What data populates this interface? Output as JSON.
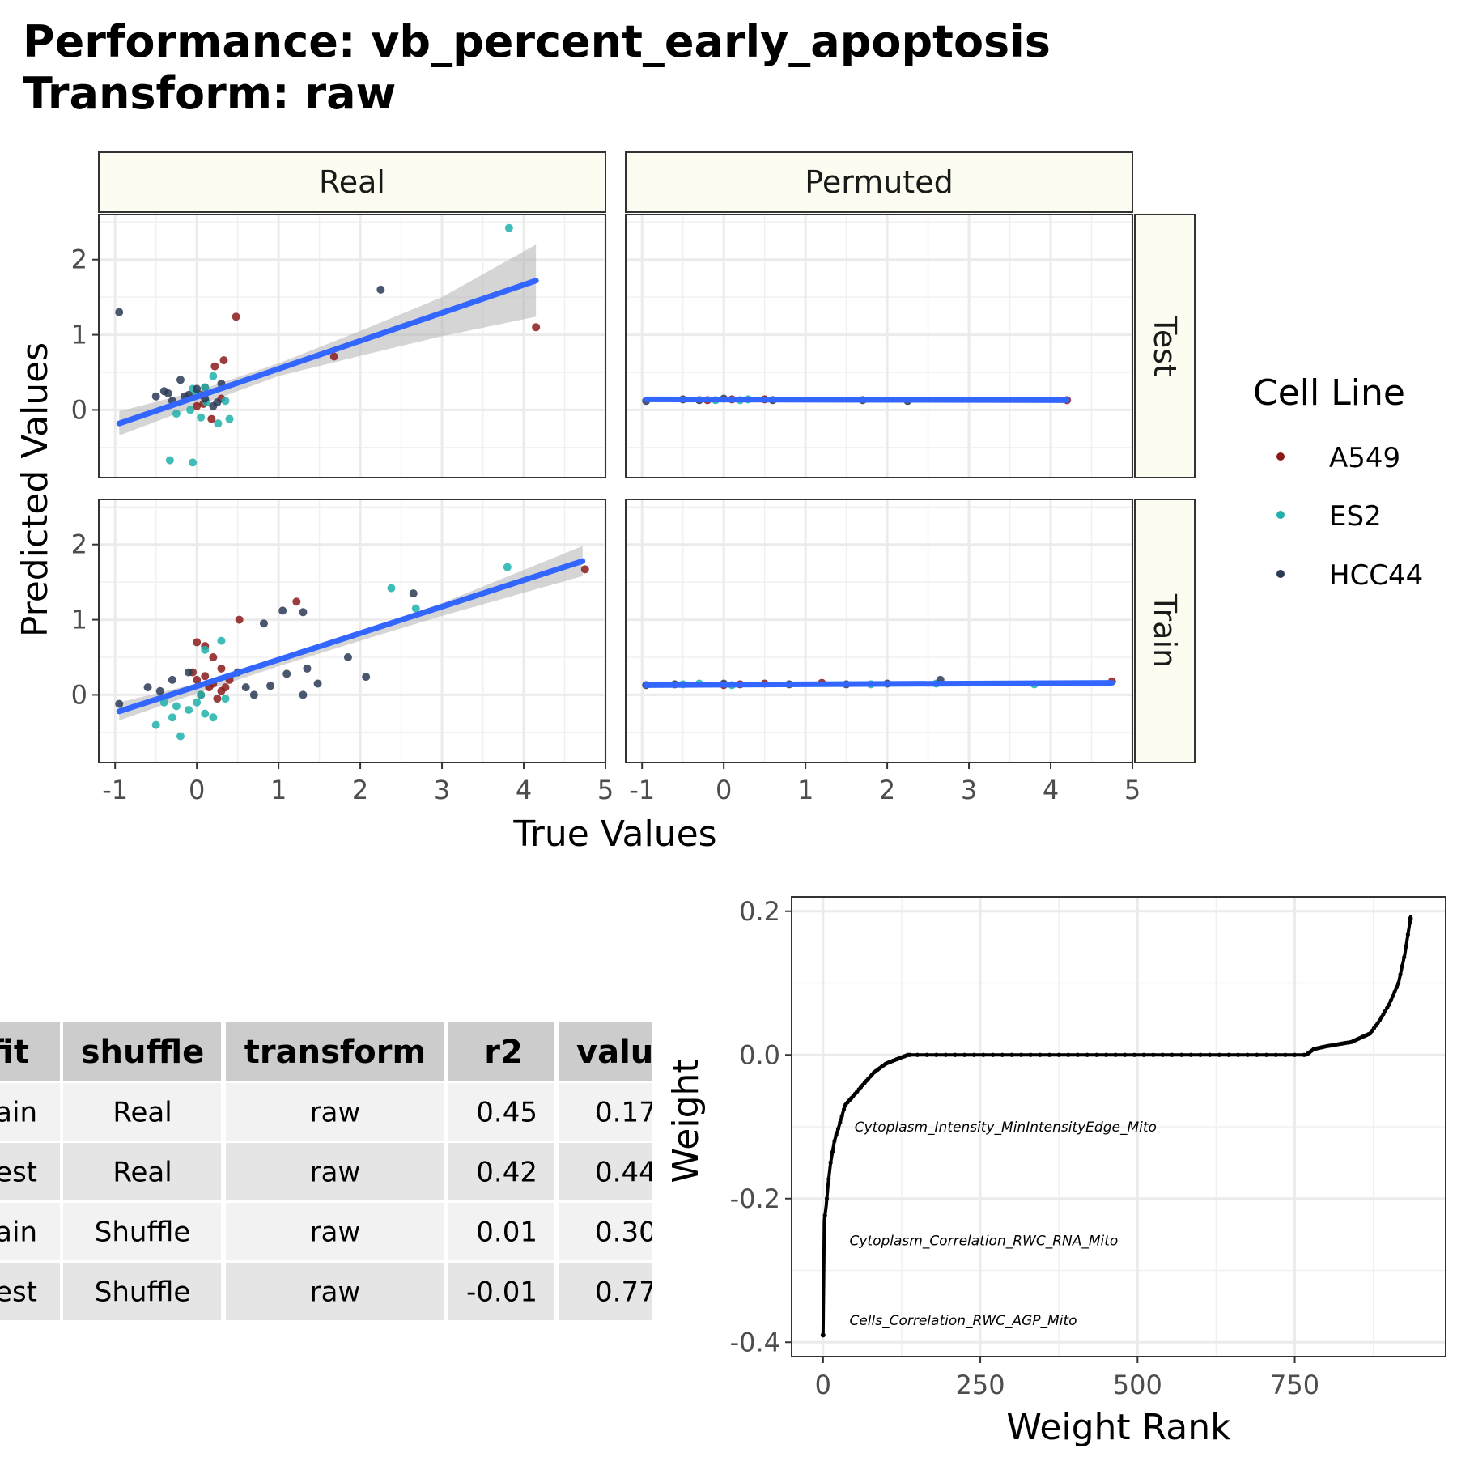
{
  "title": {
    "line1": "Performance: vb_percent_early_apoptosis",
    "line2": "Transform: raw"
  },
  "colors": {
    "A549": "#8b1a1a",
    "ES2": "#20b2aa",
    "HCC44": "#2c3a55",
    "fit_line": "#3366ff",
    "ribbon": "#b3b3b3",
    "strip_fill": "#fcfdf0"
  },
  "chart_data": [
    {
      "type": "scatter",
      "facet_columns": [
        "Real",
        "Permuted"
      ],
      "facet_rows": [
        "Test",
        "Train"
      ],
      "xlabel": "True Values",
      "ylabel": "Predicted Values",
      "xlim": [
        -1.2,
        5
      ],
      "ylim": [
        -0.9,
        2.6
      ],
      "xticks": [
        "-1",
        "0",
        "1",
        "2",
        "3",
        "4",
        "5"
      ],
      "yticks": [
        "0",
        "1",
        "2"
      ],
      "legend": {
        "title": "Cell Line",
        "entries": [
          "A549",
          "ES2",
          "HCC44"
        ],
        "placement": "right"
      },
      "panels": {
        "Real|Test": {
          "fit": {
            "x": [
              -0.95,
              4.15
            ],
            "y": [
              -0.18,
              1.72
            ]
          },
          "ribbon": {
            "x": [
              -0.95,
              0,
              1,
              2,
              3,
              4.15
            ],
            "upper": [
              -0.02,
              0.25,
              0.62,
              1.05,
              1.5,
              2.2
            ],
            "lower": [
              -0.34,
              0.05,
              0.45,
              0.72,
              0.98,
              1.24
            ]
          },
          "series": [
            {
              "name": "A549",
              "points": [
                [
                  0.48,
                  1.24
                ],
                [
                  0.33,
                  0.66
                ],
                [
                  0.22,
                  0.58
                ],
                [
                  1.68,
                  0.71
                ],
                [
                  4.15,
                  1.1
                ],
                [
                  0.1,
                  0.3
                ],
                [
                  0.0,
                  0.05
                ],
                [
                  0.08,
                  0.08
                ],
                [
                  0.3,
                  0.15
                ],
                [
                  0.18,
                  -0.12
                ],
                [
                  0.05,
                  0.2
                ]
              ]
            },
            {
              "name": "ES2",
              "points": [
                [
                  3.82,
                  2.42
                ],
                [
                  -0.33,
                  -0.67
                ],
                [
                  -0.05,
                  -0.7
                ],
                [
                  0.2,
                  0.45
                ],
                [
                  0.1,
                  0.3
                ],
                [
                  -0.05,
                  0.28
                ],
                [
                  0.0,
                  0.22
                ],
                [
                  0.35,
                  0.12
                ],
                [
                  0.4,
                  -0.12
                ],
                [
                  0.26,
                  -0.18
                ],
                [
                  -0.25,
                  -0.05
                ],
                [
                  0.05,
                  -0.1
                ],
                [
                  -0.08,
                  0.0
                ],
                [
                  0.12,
                  0.1
                ]
              ]
            },
            {
              "name": "HCC44",
              "points": [
                [
                  -0.95,
                  1.3
                ],
                [
                  2.25,
                  1.6
                ],
                [
                  -0.5,
                  0.18
                ],
                [
                  -0.35,
                  0.22
                ],
                [
                  -0.3,
                  0.12
                ],
                [
                  -0.2,
                  0.4
                ],
                [
                  -0.1,
                  0.2
                ],
                [
                  0.0,
                  0.28
                ],
                [
                  0.1,
                  0.15
                ],
                [
                  0.2,
                  0.05
                ],
                [
                  0.3,
                  0.35
                ],
                [
                  -0.4,
                  0.25
                ],
                [
                  0.25,
                  0.1
                ],
                [
                  -0.15,
                  0.18
                ]
              ]
            }
          ]
        },
        "Permuted|Test": {
          "fit": {
            "x": [
              -0.95,
              4.2
            ],
            "y": [
              0.14,
              0.13
            ]
          },
          "series": [
            {
              "name": "A549",
              "points": [
                [
                  4.2,
                  0.13
                ],
                [
                  0.1,
                  0.14
                ],
                [
                  -0.2,
                  0.13
                ],
                [
                  0.5,
                  0.14
                ]
              ]
            },
            {
              "name": "ES2",
              "points": [
                [
                  -0.1,
                  0.13
                ],
                [
                  0.2,
                  0.13
                ],
                [
                  0.3,
                  0.14
                ]
              ]
            },
            {
              "name": "HCC44",
              "points": [
                [
                  -0.95,
                  0.12
                ],
                [
                  2.25,
                  0.12
                ],
                [
                  -0.5,
                  0.14
                ],
                [
                  -0.3,
                  0.13
                ],
                [
                  0.0,
                  0.15
                ],
                [
                  0.6,
                  0.13
                ],
                [
                  1.7,
                  0.13
                ]
              ]
            }
          ]
        },
        "Real|Train": {
          "fit": {
            "x": [
              -0.95,
              4.72
            ],
            "y": [
              -0.22,
              1.78
            ]
          },
          "ribbon": {
            "x": [
              -0.95,
              0,
              1,
              2,
              3,
              4.72
            ],
            "upper": [
              -0.1,
              0.15,
              0.5,
              0.85,
              1.22,
              1.98
            ],
            "lower": [
              -0.34,
              0.02,
              0.38,
              0.72,
              1.05,
              1.58
            ]
          },
          "series": [
            {
              "name": "A549",
              "points": [
                [
                  1.22,
                  1.24
                ],
                [
                  0.52,
                  1.0
                ],
                [
                  0.0,
                  0.7
                ],
                [
                  0.1,
                  0.65
                ],
                [
                  0.2,
                  0.5
                ],
                [
                  0.3,
                  0.35
                ],
                [
                  0.1,
                  0.25
                ],
                [
                  0.2,
                  0.15
                ],
                [
                  0.3,
                  0.05
                ],
                [
                  0.05,
                  0.0
                ],
                [
                  0.25,
                  -0.05
                ],
                [
                  0.15,
                  0.1
                ],
                [
                  0.4,
                  0.2
                ],
                [
                  -0.05,
                  0.3
                ],
                [
                  4.75,
                  1.67
                ],
                [
                  0.35,
                  0.1
                ],
                [
                  0.0,
                  0.2
                ]
              ]
            },
            {
              "name": "ES2",
              "points": [
                [
                  2.38,
                  1.42
                ],
                [
                  2.68,
                  1.15
                ],
                [
                  3.8,
                  1.7
                ],
                [
                  -0.2,
                  -0.55
                ],
                [
                  -0.5,
                  -0.4
                ],
                [
                  -0.3,
                  -0.3
                ],
                [
                  -0.1,
                  -0.2
                ],
                [
                  0.0,
                  -0.1
                ],
                [
                  0.1,
                  -0.25
                ],
                [
                  -0.4,
                  -0.1
                ],
                [
                  0.3,
                  0.72
                ],
                [
                  0.1,
                  0.6
                ],
                [
                  0.2,
                  -0.3
                ],
                [
                  -0.25,
                  -0.15
                ],
                [
                  0.35,
                  -0.05
                ],
                [
                  0.05,
                  0.0
                ]
              ]
            },
            {
              "name": "HCC44",
              "points": [
                [
                  -0.95,
                  -0.12
                ],
                [
                  0.82,
                  0.95
                ],
                [
                  1.3,
                  1.1
                ],
                [
                  1.05,
                  1.12
                ],
                [
                  1.85,
                  0.5
                ],
                [
                  2.07,
                  0.24
                ],
                [
                  1.48,
                  0.15
                ],
                [
                  1.35,
                  0.35
                ],
                [
                  1.1,
                  0.28
                ],
                [
                  0.9,
                  0.12
                ],
                [
                  2.65,
                  1.35
                ],
                [
                  -0.6,
                  0.1
                ],
                [
                  -0.3,
                  0.2
                ],
                [
                  -0.1,
                  0.3
                ],
                [
                  0.5,
                  0.3
                ],
                [
                  0.6,
                  0.1
                ],
                [
                  0.7,
                  0.0
                ],
                [
                  -0.45,
                  0.05
                ],
                [
                  1.3,
                  0.0
                ]
              ]
            }
          ]
        },
        "Permuted|Train": {
          "fit": {
            "x": [
              -0.95,
              4.75
            ],
            "y": [
              0.13,
              0.16
            ]
          },
          "series": [
            {
              "name": "A549",
              "points": [
                [
                  4.75,
                  0.18
                ],
                [
                  1.2,
                  0.16
                ],
                [
                  0.2,
                  0.14
                ],
                [
                  0.5,
                  0.15
                ],
                [
                  0.0,
                  0.13
                ]
              ]
            },
            {
              "name": "ES2",
              "points": [
                [
                  3.8,
                  0.14
                ],
                [
                  -0.5,
                  0.14
                ],
                [
                  -0.3,
                  0.15
                ],
                [
                  0.1,
                  0.13
                ],
                [
                  2.6,
                  0.15
                ],
                [
                  1.8,
                  0.14
                ]
              ]
            },
            {
              "name": "HCC44",
              "points": [
                [
                  -0.95,
                  0.13
                ],
                [
                  2.65,
                  0.2
                ],
                [
                  -0.6,
                  0.14
                ],
                [
                  0.0,
                  0.15
                ],
                [
                  0.8,
                  0.14
                ],
                [
                  1.5,
                  0.14
                ],
                [
                  2.0,
                  0.15
                ]
              ]
            }
          ]
        }
      }
    },
    {
      "type": "table",
      "columns": [
        "fit",
        "shuffle",
        "transform",
        "r2",
        "value"
      ],
      "columns_visible": [
        "fit",
        "shuffle",
        "transform",
        "r2",
        "valu"
      ],
      "rows": [
        [
          "rain",
          "Real",
          "raw",
          "0.45",
          "0.17"
        ],
        [
          "est",
          "Real",
          "raw",
          "0.42",
          "0.44"
        ],
        [
          "rain",
          "Shuffle",
          "raw",
          "0.01",
          "0.30"
        ],
        [
          "est",
          "Shuffle",
          "raw",
          "-0.01",
          "0.77"
        ]
      ],
      "visible_header": [
        "fit",
        "shuffle",
        "transform",
        "r2",
        "valu"
      ]
    },
    {
      "type": "scatter",
      "xlabel": "Weight Rank",
      "ylabel": "Weight",
      "xlim": [
        -50,
        990
      ],
      "ylim": [
        -0.42,
        0.22
      ],
      "xticks": [
        "0",
        "250",
        "500",
        "750"
      ],
      "yticks": [
        "0.2",
        "0.0",
        "-0.2",
        "-0.4"
      ],
      "curve": {
        "rank": [
          0,
          2,
          5,
          8,
          12,
          18,
          25,
          35,
          45,
          60,
          80,
          100,
          120,
          135,
          150,
          300,
          500,
          700,
          768,
          780,
          800,
          840,
          870,
          885,
          900,
          915,
          925,
          935
        ],
        "weight": [
          -0.39,
          -0.23,
          -0.21,
          -0.18,
          -0.15,
          -0.12,
          -0.1,
          -0.07,
          -0.06,
          -0.045,
          -0.025,
          -0.012,
          -0.005,
          0.0,
          0.0,
          0.0,
          0.0,
          0.0,
          0.0,
          0.008,
          0.012,
          0.018,
          0.03,
          0.048,
          0.07,
          0.1,
          0.14,
          0.195
        ]
      },
      "annotations": [
        {
          "label": "Cytoplasm_Intensity_MinIntensityEdge_Mito",
          "rank": 50,
          "weight": -0.107
        },
        {
          "label": "Cytoplasm_Correlation_RWC_RNA_Mito",
          "rank": 42,
          "weight": -0.265
        },
        {
          "label": "Cells_Correlation_RWC_AGP_Mito",
          "rank": 42,
          "weight": -0.376
        }
      ]
    }
  ]
}
